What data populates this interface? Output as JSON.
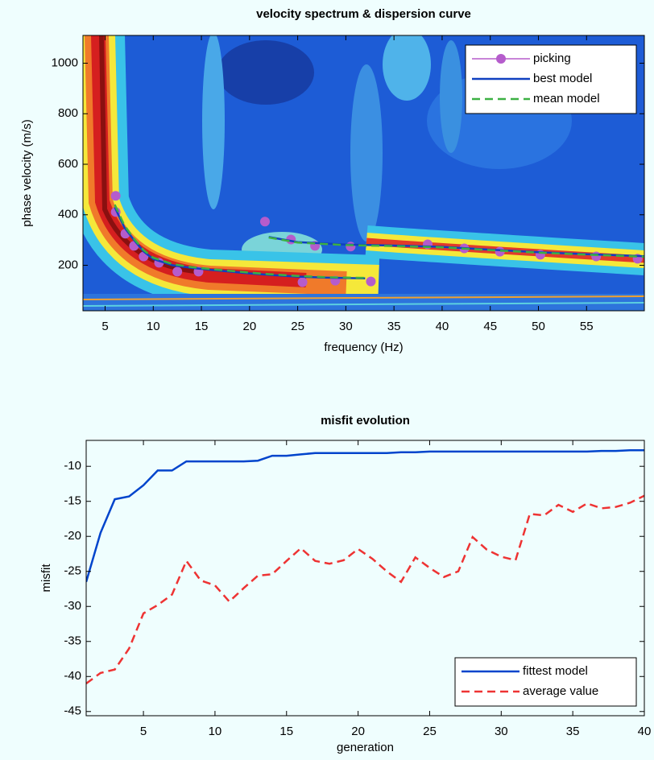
{
  "chart_data": [
    {
      "type": "line",
      "title": "velocity spectrum & dispersion curve",
      "x_label": "frequency (Hz)",
      "y_label": "phase velocity (m/s)",
      "xlim": [
        2.7,
        61
      ],
      "ylim": [
        20,
        1110
      ],
      "xticks": [
        5,
        10,
        15,
        20,
        25,
        30,
        35,
        40,
        45,
        50,
        55
      ],
      "yticks": [
        200,
        400,
        600,
        800,
        1000
      ],
      "legend": "upper right",
      "series": [
        {
          "name": "picking",
          "color": "#b55ccc",
          "line_style": "none",
          "marker": true,
          "x": [
            6.1,
            6.1,
            7.1,
            8.0,
            9.0,
            10.6,
            12.5,
            14.7,
            21.6,
            24.3,
            25.5,
            26.8,
            28.9,
            30.5,
            32.6,
            38.5,
            42.3,
            46,
            50.2,
            56,
            60.3
          ],
          "values": [
            475,
            411,
            325,
            277,
            235,
            210,
            175,
            175,
            373,
            302,
            133,
            277,
            139,
            274,
            136,
            283,
            267,
            254,
            242,
            235,
            226
          ]
        },
        {
          "name": "best model",
          "color": "#1040c0",
          "line_style": "solid",
          "marker": false,
          "x": [
            6,
            7,
            8,
            9,
            10,
            12,
            14,
            16,
            18,
            20,
            22,
            25,
            28,
            32,
            null,
            22,
            25,
            30,
            35,
            40,
            45,
            50,
            55,
            61
          ],
          "values": [
            430,
            350,
            300,
            255,
            225,
            200,
            190,
            182,
            175,
            168,
            162,
            155,
            151,
            148,
            null,
            312,
            292,
            282,
            278,
            273,
            262,
            252,
            244,
            236
          ]
        },
        {
          "name": "mean model",
          "color": "#3cb043",
          "line_style": "dashed",
          "marker": false,
          "x": [
            6,
            7,
            8,
            9,
            10,
            12,
            14,
            16,
            18,
            20,
            22,
            25,
            28,
            32,
            null,
            22,
            25,
            30,
            35,
            40,
            45,
            50,
            55,
            61
          ],
          "values": [
            440,
            358,
            305,
            260,
            230,
            205,
            193,
            185,
            178,
            171,
            165,
            158,
            153,
            150,
            null,
            310,
            290,
            280,
            276,
            271,
            260,
            250,
            242,
            234
          ]
        }
      ]
    },
    {
      "type": "line",
      "title": "misfit evolution",
      "x_label": "generation",
      "y_label": "misfit",
      "xlim": [
        1,
        40
      ],
      "ylim": [
        -45.6,
        -6.3
      ],
      "xticks": [
        5,
        10,
        15,
        20,
        25,
        30,
        35,
        40
      ],
      "yticks": [
        -10,
        -15,
        -20,
        -25,
        -30,
        -35,
        -40,
        -45
      ],
      "legend": "lower right",
      "x": [
        1,
        2,
        3,
        4,
        5,
        6,
        7,
        8,
        9,
        10,
        11,
        12,
        13,
        14,
        15,
        16,
        17,
        18,
        19,
        20,
        21,
        22,
        23,
        24,
        25,
        26,
        27,
        28,
        29,
        30,
        31,
        32,
        33,
        34,
        35,
        36,
        37,
        38,
        39,
        40
      ],
      "series": [
        {
          "name": "fittest model",
          "color": "#0044cc",
          "line_style": "solid",
          "marker": false,
          "values": [
            -26.5,
            -19.5,
            -14.7,
            -14.3,
            -12.7,
            -10.6,
            -10.6,
            -9.3,
            -9.3,
            -9.3,
            -9.3,
            -9.3,
            -9.2,
            -8.5,
            -8.5,
            -8.3,
            -8.1,
            -8.1,
            -8.1,
            -8.1,
            -8.1,
            -8.1,
            -8.0,
            -8.0,
            -7.9,
            -7.9,
            -7.9,
            -7.9,
            -7.9,
            -7.9,
            -7.9,
            -7.9,
            -7.9,
            -7.9,
            -7.9,
            -7.9,
            -7.8,
            -7.8,
            -7.7,
            -7.7
          ]
        },
        {
          "name": "average value",
          "color": "#ee3333",
          "line_style": "dashed",
          "marker": false,
          "values": [
            -41,
            -39.5,
            -39,
            -36,
            -31,
            -29.8,
            -28.3,
            -23.5,
            -26.3,
            -27,
            -29.3,
            -27.4,
            -25.6,
            -25.4,
            -23.5,
            -21.7,
            -23.5,
            -23.9,
            -23.4,
            -21.8,
            -23.2,
            -25,
            -26.5,
            -23,
            -24.5,
            -25.8,
            -25,
            -20.1,
            -21.9,
            -22.9,
            -23.4,
            -16.8,
            -17,
            -15.5,
            -16.5,
            -15.3,
            -16,
            -15.8,
            -15.2,
            -14.2
          ]
        }
      ]
    }
  ]
}
